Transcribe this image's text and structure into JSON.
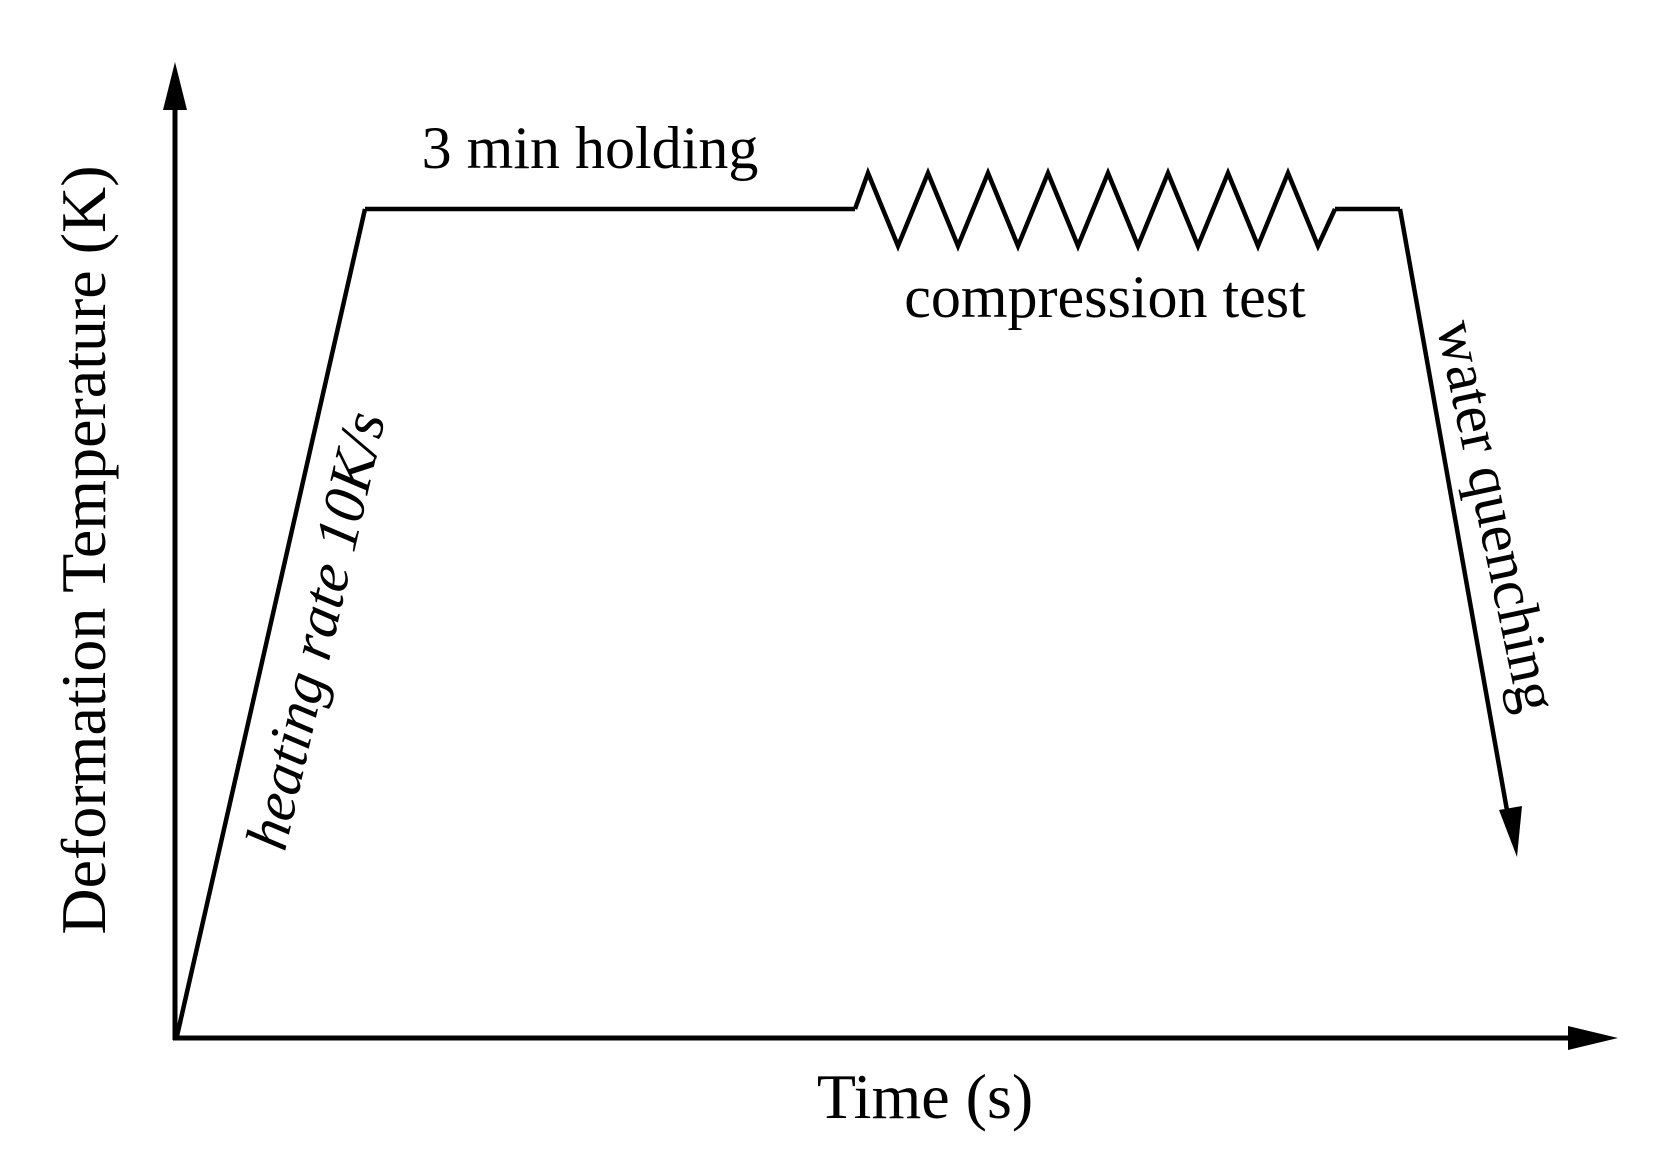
{
  "diagram": {
    "x_axis_label": "Time (s)",
    "y_axis_label": "Deformation Temperature (K)",
    "stages": [
      {
        "id": "heating",
        "label": "heating rate 10K/s"
      },
      {
        "id": "holding",
        "label": "3 min holding"
      },
      {
        "id": "compression",
        "label": "compression test"
      },
      {
        "id": "quenching",
        "label": "water quenching"
      }
    ],
    "colors": {
      "line": "#000000",
      "background": "#ffffff"
    }
  }
}
